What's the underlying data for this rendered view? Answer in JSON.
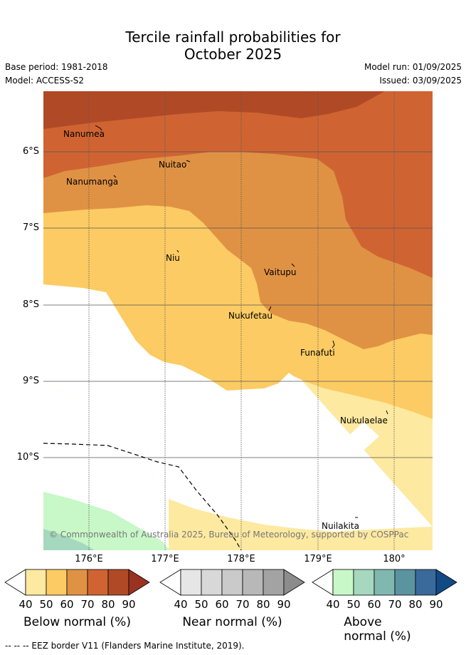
{
  "title_line1": "Tercile rainfall probabilities for",
  "title_line2": "October 2025",
  "base_period": "Base period: 1981-2018",
  "model": "Model: ACCESS-S2",
  "model_run": "Model run: 01/09/2025",
  "issued": "Issued: 03/09/2025",
  "lat_labels": [
    "6°S",
    "7°S",
    "8°S",
    "9°S",
    "10°S"
  ],
  "lon_labels": [
    "176°E",
    "177°E",
    "178°E",
    "179°E",
    "180°"
  ],
  "islands": [
    "Nanumea",
    "Nuitao",
    "Nanumanga",
    "Niu",
    "Vaitupu",
    "Nukufetau",
    "Funafuti",
    "Nukulaelae",
    "Nuilakita"
  ],
  "copyright": "© Commonwealth of Australia 2025, Bureau of Meteorology, supported by COSPPac",
  "colorbars": [
    {
      "title": "Below normal (%)",
      "ticks": [
        "40",
        "50",
        "60",
        "70",
        "80",
        "90"
      ],
      "colors": [
        "#fde9a0",
        "#fccb63",
        "#e09244",
        "#cf6432",
        "#b04a26",
        "#9a3222"
      ]
    },
    {
      "title": "Near normal (%)",
      "ticks": [
        "40",
        "50",
        "60",
        "70",
        "80",
        "90"
      ],
      "colors": [
        "#e6e6e6",
        "#d8d8d8",
        "#cacaca",
        "#b8b8b8",
        "#a3a3a3",
        "#8c8c8c"
      ]
    },
    {
      "title": "Above normal (%)",
      "ticks": [
        "40",
        "50",
        "60",
        "70",
        "80",
        "90"
      ],
      "colors": [
        "#c8f8c8",
        "#a5d8be",
        "#80b8b0",
        "#5a94a0",
        "#3a6a9c",
        "#124a86"
      ]
    }
  ],
  "eez_legend": "--  --  -- EEZ border V11 (Flanders Marine Institute, 2019)."
}
